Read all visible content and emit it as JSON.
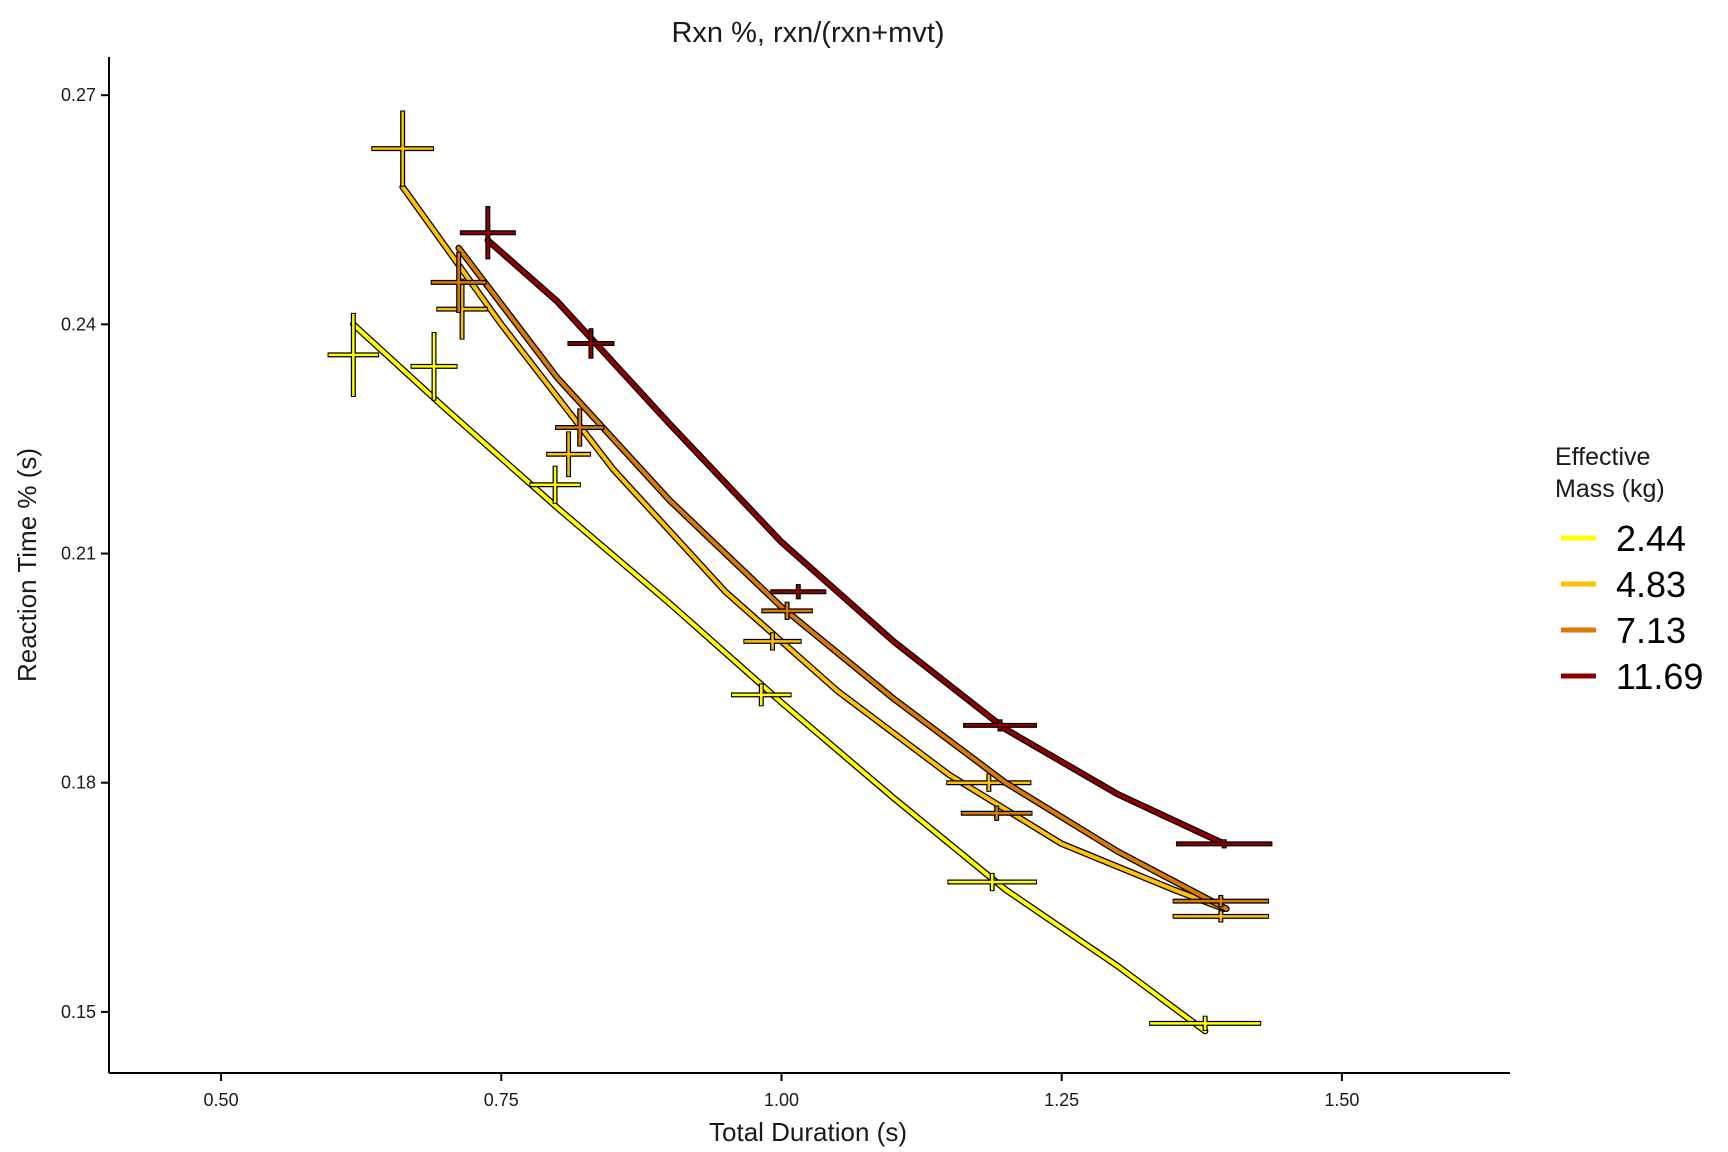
{
  "chart_data": {
    "type": "line",
    "title": "Rxn %, rxn/(rxn+mvt)",
    "xlabel": "Total Duration (s)",
    "ylabel": "Reaction Time % (s)",
    "xlim": [
      0.4,
      1.65
    ],
    "ylim": [
      0.142,
      0.275
    ],
    "xticks": [
      0.5,
      0.75,
      1.0,
      1.25,
      1.5
    ],
    "xtick_labels": [
      "0.50",
      "0.75",
      "1.00",
      "1.25",
      "1.50"
    ],
    "yticks": [
      0.15,
      0.18,
      0.21,
      0.24,
      0.27
    ],
    "ytick_labels": [
      "0.15",
      "0.18",
      "0.21",
      "0.24",
      "0.27"
    ],
    "grid": false,
    "legend": {
      "title_lines": [
        "Effective",
        "Mass (kg)"
      ],
      "position": "right"
    },
    "series": [
      {
        "name": "2.44",
        "color": "#ffff00",
        "fit": [
          [
            0.618,
            0.24
          ],
          [
            0.7,
            0.229
          ],
          [
            0.8,
            0.216
          ],
          [
            0.9,
            0.2035
          ],
          [
            1.0,
            0.1905
          ],
          [
            1.1,
            0.178
          ],
          [
            1.2,
            0.166
          ],
          [
            1.3,
            0.156
          ],
          [
            1.378,
            0.1475
          ]
        ],
        "points": [
          {
            "x": 0.618,
            "y": 0.236,
            "xerr": 0.023,
            "yerr": 0.0055
          },
          {
            "x": 0.69,
            "y": 0.2345,
            "xerr": 0.021,
            "yerr": 0.0045
          },
          {
            "x": 0.798,
            "y": 0.219,
            "xerr": 0.023,
            "yerr": 0.0025
          },
          {
            "x": 0.982,
            "y": 0.1915,
            "xerr": 0.027,
            "yerr": 0.0015
          },
          {
            "x": 1.188,
            "y": 0.167,
            "xerr": 0.04,
            "yerr": 0.0012
          },
          {
            "x": 1.378,
            "y": 0.1485,
            "xerr": 0.05,
            "yerr": 0.001
          }
        ]
      },
      {
        "name": "4.83",
        "color": "#ffc107",
        "fit": [
          [
            0.662,
            0.258
          ],
          [
            0.75,
            0.24
          ],
          [
            0.85,
            0.221
          ],
          [
            0.95,
            0.205
          ],
          [
            1.05,
            0.192
          ],
          [
            1.15,
            0.181
          ],
          [
            1.25,
            0.172
          ],
          [
            1.35,
            0.166
          ],
          [
            1.395,
            0.1635
          ]
        ],
        "points": [
          {
            "x": 0.662,
            "y": 0.263,
            "xerr": 0.028,
            "yerr": 0.005
          },
          {
            "x": 0.715,
            "y": 0.242,
            "xerr": 0.023,
            "yerr": 0.004
          },
          {
            "x": 0.81,
            "y": 0.223,
            "xerr": 0.02,
            "yerr": 0.003
          },
          {
            "x": 0.992,
            "y": 0.1985,
            "xerr": 0.026,
            "yerr": 0.0012
          },
          {
            "x": 1.185,
            "y": 0.18,
            "xerr": 0.038,
            "yerr": 0.0012
          },
          {
            "x": 1.392,
            "y": 0.1625,
            "xerr": 0.043,
            "yerr": 0.0008
          }
        ]
      },
      {
        "name": "7.13",
        "color": "#d97a07",
        "fit": [
          [
            0.712,
            0.25
          ],
          [
            0.8,
            0.233
          ],
          [
            0.9,
            0.217
          ],
          [
            1.0,
            0.203
          ],
          [
            1.1,
            0.191
          ],
          [
            1.2,
            0.18
          ],
          [
            1.3,
            0.171
          ],
          [
            1.397,
            0.1635
          ]
        ],
        "points": [
          {
            "x": 0.712,
            "y": 0.2455,
            "xerr": 0.025,
            "yerr": 0.004
          },
          {
            "x": 0.82,
            "y": 0.2265,
            "xerr": 0.022,
            "yerr": 0.0025
          },
          {
            "x": 1.005,
            "y": 0.2025,
            "xerr": 0.023,
            "yerr": 0.0012
          },
          {
            "x": 1.192,
            "y": 0.176,
            "xerr": 0.032,
            "yerr": 0.001
          },
          {
            "x": 1.392,
            "y": 0.1645,
            "xerr": 0.043,
            "yerr": 0.0008
          }
        ]
      },
      {
        "name": "11.69",
        "color": "#8b0000",
        "fit": [
          [
            0.738,
            0.251
          ],
          [
            0.8,
            0.243
          ],
          [
            0.9,
            0.227
          ],
          [
            1.0,
            0.2115
          ],
          [
            1.1,
            0.1985
          ],
          [
            1.2,
            0.187
          ],
          [
            1.3,
            0.1785
          ],
          [
            1.395,
            0.172
          ]
        ],
        "points": [
          {
            "x": 0.738,
            "y": 0.252,
            "xerr": 0.025,
            "yerr": 0.0035
          },
          {
            "x": 0.83,
            "y": 0.2375,
            "xerr": 0.021,
            "yerr": 0.002
          },
          {
            "x": 1.015,
            "y": 0.205,
            "xerr": 0.025,
            "yerr": 0.001
          },
          {
            "x": 1.195,
            "y": 0.1875,
            "xerr": 0.033,
            "yerr": 0.0008
          },
          {
            "x": 1.395,
            "y": 0.172,
            "xerr": 0.043,
            "yerr": 0.0006
          }
        ]
      }
    ]
  }
}
